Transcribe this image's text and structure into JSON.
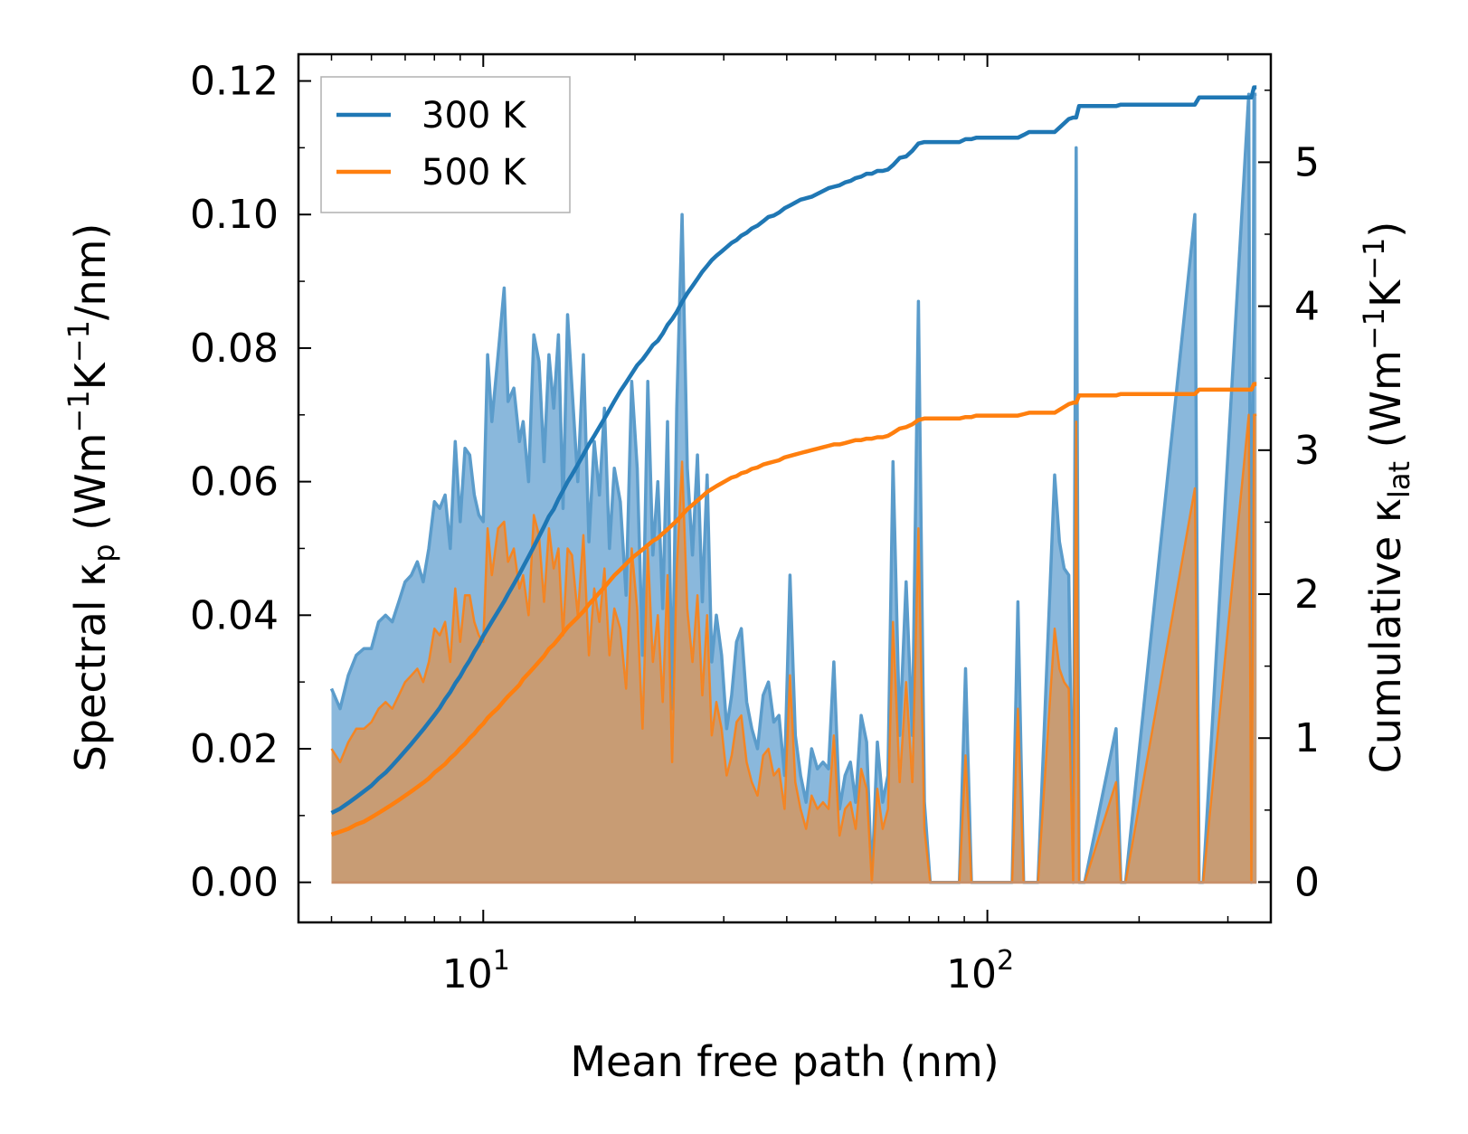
{
  "chart_data": {
    "type": "line",
    "xscale": "log",
    "xlabel": "Mean free path (nm)",
    "ylabel_left": {
      "base": "Spectral κ",
      "sub": "p",
      "unit_open": " (Wm",
      "sup1": "−1",
      "mid": "K",
      "sup2": "−1",
      "unit_close": "/nm)"
    },
    "ylabel_right": {
      "base": "Cumulative κ",
      "sub": "lat",
      "unit_open": " (Wm",
      "sup1": "−1",
      "mid": "K",
      "sup2": "−1",
      "unit_close": ")"
    },
    "xlim": [
      4.3,
      365
    ],
    "ylim_left": [
      -0.006,
      0.124
    ],
    "ylim_right": [
      -0.28,
      5.75
    ],
    "xticks": [
      {
        "value": 10,
        "base": "10",
        "exp": "1"
      },
      {
        "value": 100,
        "base": "10",
        "exp": "2"
      }
    ],
    "yticks_left": [
      "0.00",
      "0.02",
      "0.04",
      "0.06",
      "0.08",
      "0.10",
      "0.12"
    ],
    "yticks_right": [
      "0",
      "1",
      "2",
      "3",
      "4",
      "5"
    ],
    "colors": {
      "300K": "#1f77b4",
      "500K": "#ff7f0e",
      "fill300": "#8ab8dc",
      "fill500": "#c89c74"
    },
    "legend": {
      "position": "upper-left",
      "entries": [
        "300 K",
        "500 K"
      ]
    },
    "mfp": [
      5.0,
      5.2,
      5.4,
      5.6,
      5.8,
      6.0,
      6.2,
      6.4,
      6.6,
      6.8,
      7.0,
      7.2,
      7.4,
      7.6,
      7.8,
      8.0,
      8.2,
      8.4,
      8.6,
      8.8,
      9.0,
      9.2,
      9.4,
      9.6,
      9.8,
      10.0,
      10.2,
      10.4,
      10.7,
      11.0,
      11.2,
      11.5,
      11.8,
      12.0,
      12.3,
      12.6,
      12.9,
      13.2,
      13.5,
      13.8,
      14.1,
      14.4,
      14.7,
      15.0,
      15.4,
      15.8,
      16.2,
      16.6,
      17.0,
      17.4,
      17.8,
      18.2,
      18.7,
      19.2,
      19.7,
      20.2,
      20.7,
      21.2,
      21.7,
      22.2,
      22.7,
      23.2,
      23.7,
      24.2,
      24.8,
      25.4,
      26.0,
      26.6,
      27.2,
      27.8,
      28.4,
      29.0,
      29.7,
      30.4,
      31.1,
      31.8,
      32.5,
      33.3,
      34.1,
      35.0,
      35.9,
      36.8,
      37.7,
      38.6,
      39.6,
      40.6,
      41.6,
      42.6,
      43.7,
      44.8,
      46.0,
      47.2,
      48.4,
      49.6,
      50.9,
      52.2,
      53.5,
      54.8,
      56.2,
      57.6,
      59.0,
      60.5,
      62.0,
      63.5,
      65.0,
      67.0,
      69.0,
      71.0,
      73.0,
      75.0,
      77.0,
      88.0,
      90.5,
      93.0,
      95.0,
      112.0,
      115.0,
      118.0,
      121.0,
      126.0,
      136.0,
      139.0,
      142.0,
      145.0,
      148.0,
      150.0,
      152.0,
      154.0,
      156.0,
      180.0,
      184.0,
      188.0,
      258.0,
      263.0,
      268.0,
      330.0,
      334.0,
      338.0,
      342.0
    ],
    "series": [
      {
        "name": "300 K",
        "spectral": [
          0.029,
          0.026,
          0.031,
          0.034,
          0.035,
          0.035,
          0.039,
          0.04,
          0.039,
          0.042,
          0.045,
          0.046,
          0.048,
          0.045,
          0.05,
          0.057,
          0.056,
          0.058,
          0.05,
          0.066,
          0.054,
          0.065,
          0.064,
          0.058,
          0.055,
          0.054,
          0.079,
          0.069,
          0.079,
          0.089,
          0.072,
          0.074,
          0.066,
          0.069,
          0.06,
          0.082,
          0.078,
          0.063,
          0.079,
          0.071,
          0.082,
          0.056,
          0.085,
          0.074,
          0.06,
          0.079,
          0.051,
          0.066,
          0.058,
          0.071,
          0.05,
          0.062,
          0.057,
          0.043,
          0.075,
          0.062,
          0.034,
          0.075,
          0.049,
          0.06,
          0.041,
          0.069,
          0.026,
          0.071,
          0.1,
          0.062,
          0.049,
          0.064,
          0.042,
          0.061,
          0.033,
          0.04,
          0.034,
          0.023,
          0.028,
          0.036,
          0.038,
          0.027,
          0.023,
          0.02,
          0.028,
          0.03,
          0.024,
          0.025,
          0.016,
          0.046,
          0.022,
          0.016,
          0.012,
          0.02,
          0.017,
          0.018,
          0.017,
          0.033,
          0.011,
          0.016,
          0.018,
          0.012,
          0.025,
          0.021,
          0.0,
          0.021,
          0.012,
          0.016,
          0.063,
          0.022,
          0.045,
          0.022,
          0.087,
          0.012,
          0.0,
          0.0,
          0.032,
          0.0,
          0.0,
          0.0,
          0.042,
          0.0,
          0.0,
          0.0,
          0.061,
          0.051,
          0.047,
          0.046,
          0.0,
          0.11,
          0.0,
          0.0,
          0.0,
          0.023,
          0.0,
          0.0,
          0.1,
          0.0,
          0.0,
          0.118,
          0.0,
          0.118,
          0.118
        ],
        "cumulative": [
          0.48,
          0.51,
          0.55,
          0.59,
          0.63,
          0.67,
          0.72,
          0.76,
          0.81,
          0.86,
          0.91,
          0.96,
          1.01,
          1.06,
          1.11,
          1.16,
          1.21,
          1.27,
          1.32,
          1.38,
          1.43,
          1.49,
          1.54,
          1.6,
          1.65,
          1.71,
          1.76,
          1.81,
          1.88,
          1.95,
          2.0,
          2.07,
          2.14,
          2.19,
          2.26,
          2.33,
          2.4,
          2.47,
          2.54,
          2.59,
          2.66,
          2.72,
          2.78,
          2.83,
          2.9,
          2.97,
          3.04,
          3.1,
          3.16,
          3.22,
          3.28,
          3.34,
          3.41,
          3.47,
          3.53,
          3.59,
          3.63,
          3.68,
          3.73,
          3.76,
          3.81,
          3.87,
          3.91,
          3.96,
          4.03,
          4.09,
          4.14,
          4.19,
          4.24,
          4.28,
          4.32,
          4.35,
          4.38,
          4.41,
          4.44,
          4.46,
          4.49,
          4.51,
          4.54,
          4.56,
          4.59,
          4.62,
          4.63,
          4.65,
          4.68,
          4.7,
          4.72,
          4.74,
          4.75,
          4.76,
          4.78,
          4.8,
          4.82,
          4.83,
          4.84,
          4.86,
          4.87,
          4.89,
          4.9,
          4.92,
          4.92,
          4.94,
          4.94,
          4.95,
          4.98,
          5.03,
          5.04,
          5.08,
          5.13,
          5.14,
          5.14,
          5.14,
          5.16,
          5.16,
          5.17,
          5.17,
          5.17,
          5.19,
          5.21,
          5.21,
          5.21,
          5.24,
          5.27,
          5.3,
          5.31,
          5.31,
          5.39,
          5.39,
          5.39,
          5.39,
          5.4,
          5.4,
          5.4,
          5.45,
          5.45,
          5.45,
          5.45,
          5.52,
          5.52,
          5.52
        ]
      },
      {
        "name": "500 K",
        "spectral": [
          0.02,
          0.018,
          0.021,
          0.023,
          0.023,
          0.024,
          0.026,
          0.027,
          0.026,
          0.028,
          0.03,
          0.031,
          0.032,
          0.03,
          0.033,
          0.038,
          0.037,
          0.039,
          0.033,
          0.044,
          0.036,
          0.043,
          0.043,
          0.039,
          0.037,
          0.036,
          0.053,
          0.046,
          0.053,
          0.054,
          0.048,
          0.05,
          0.044,
          0.046,
          0.04,
          0.055,
          0.052,
          0.042,
          0.053,
          0.047,
          0.05,
          0.037,
          0.05,
          0.049,
          0.04,
          0.052,
          0.034,
          0.044,
          0.039,
          0.047,
          0.034,
          0.041,
          0.038,
          0.029,
          0.05,
          0.041,
          0.023,
          0.05,
          0.033,
          0.04,
          0.027,
          0.046,
          0.018,
          0.047,
          0.063,
          0.041,
          0.033,
          0.043,
          0.028,
          0.04,
          0.022,
          0.027,
          0.023,
          0.016,
          0.019,
          0.024,
          0.025,
          0.018,
          0.015,
          0.013,
          0.019,
          0.02,
          0.016,
          0.017,
          0.011,
          0.031,
          0.015,
          0.011,
          0.008,
          0.013,
          0.011,
          0.012,
          0.011,
          0.022,
          0.007,
          0.011,
          0.012,
          0.008,
          0.017,
          0.014,
          0.0,
          0.014,
          0.008,
          0.011,
          0.039,
          0.015,
          0.03,
          0.015,
          0.053,
          0.008,
          0.0,
          0.0,
          0.019,
          0.0,
          0.0,
          0.0,
          0.026,
          0.0,
          0.0,
          0.0,
          0.038,
          0.032,
          0.03,
          0.029,
          0.0,
          0.069,
          0.0,
          0.0,
          0.0,
          0.015,
          0.0,
          0.0,
          0.059,
          0.0,
          0.0,
          0.07,
          0.0,
          0.07,
          0.07
        ],
        "cumulative": [
          0.33,
          0.35,
          0.37,
          0.4,
          0.42,
          0.45,
          0.48,
          0.51,
          0.54,
          0.57,
          0.6,
          0.63,
          0.66,
          0.69,
          0.72,
          0.76,
          0.79,
          0.82,
          0.86,
          0.89,
          0.93,
          0.96,
          1.0,
          1.03,
          1.07,
          1.1,
          1.14,
          1.17,
          1.21,
          1.26,
          1.29,
          1.33,
          1.37,
          1.41,
          1.45,
          1.49,
          1.53,
          1.57,
          1.62,
          1.65,
          1.69,
          1.73,
          1.77,
          1.8,
          1.84,
          1.88,
          1.93,
          1.97,
          2.01,
          2.05,
          2.09,
          2.13,
          2.17,
          2.21,
          2.25,
          2.28,
          2.31,
          2.34,
          2.37,
          2.39,
          2.42,
          2.45,
          2.48,
          2.51,
          2.55,
          2.59,
          2.62,
          2.65,
          2.68,
          2.71,
          2.73,
          2.75,
          2.77,
          2.79,
          2.81,
          2.82,
          2.84,
          2.85,
          2.87,
          2.88,
          2.9,
          2.91,
          2.92,
          2.93,
          2.95,
          2.96,
          2.97,
          2.98,
          2.99,
          3.0,
          3.01,
          3.02,
          3.03,
          3.04,
          3.04,
          3.05,
          3.06,
          3.07,
          3.07,
          3.08,
          3.08,
          3.09,
          3.09,
          3.1,
          3.12,
          3.15,
          3.16,
          3.18,
          3.21,
          3.22,
          3.22,
          3.22,
          3.23,
          3.23,
          3.24,
          3.24,
          3.24,
          3.25,
          3.26,
          3.26,
          3.26,
          3.28,
          3.3,
          3.32,
          3.33,
          3.33,
          3.38,
          3.38,
          3.38,
          3.38,
          3.39,
          3.39,
          3.39,
          3.42,
          3.42,
          3.42,
          3.42,
          3.46,
          3.46,
          3.46
        ]
      }
    ]
  }
}
